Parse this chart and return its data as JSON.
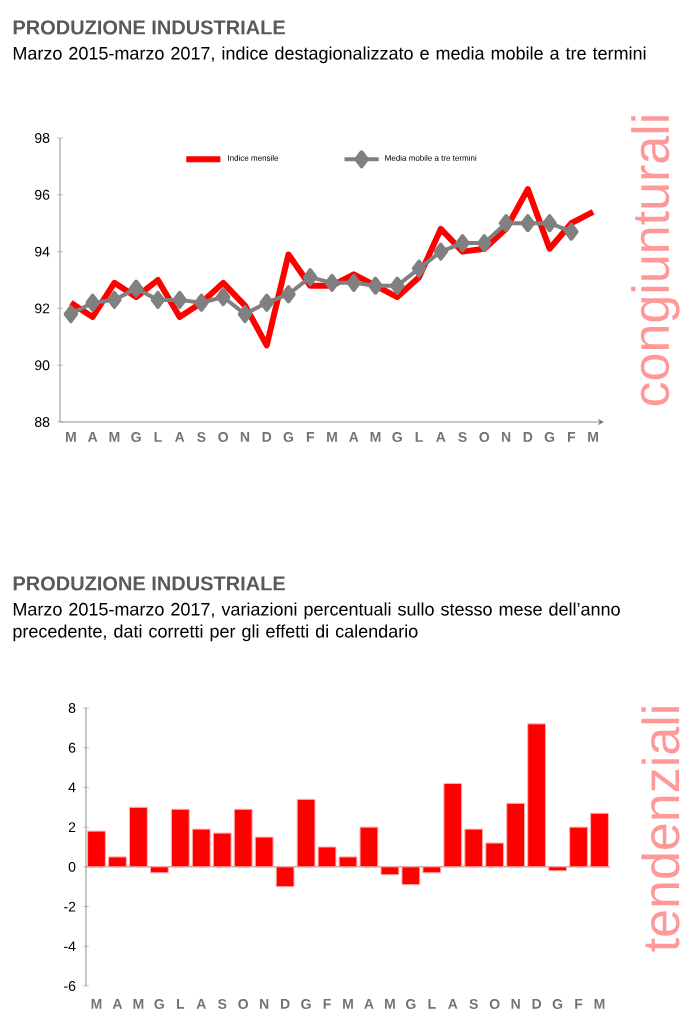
{
  "chart_data": [
    {
      "type": "line",
      "title": "PRODUZIONE INDUSTRIALE",
      "subtitle": "Marzo 2015-marzo 2017, indice destagionalizzato e media mobile a tre termini",
      "categories": [
        "M",
        "A",
        "M",
        "G",
        "L",
        "A",
        "S",
        "O",
        "N",
        "D",
        "G",
        "F",
        "M",
        "A",
        "M",
        "G",
        "L",
        "A",
        "S",
        "O",
        "N",
        "D",
        "G",
        "F",
        "M"
      ],
      "series": [
        {
          "name": "Indice mensile",
          "color": "#ff0000",
          "marker": "none",
          "values": [
            92.2,
            91.7,
            92.9,
            92.4,
            93.0,
            91.7,
            92.2,
            92.9,
            92.1,
            90.7,
            93.9,
            92.8,
            92.8,
            93.2,
            92.8,
            92.4,
            93.1,
            94.8,
            94.0,
            94.1,
            94.8,
            96.2,
            94.1,
            95.0,
            95.4
          ]
        },
        {
          "name": "Media mobile a tre termini",
          "color": "#808080",
          "marker": "diamond",
          "values": [
            91.8,
            92.2,
            92.3,
            92.7,
            92.3,
            92.3,
            92.2,
            92.4,
            91.8,
            92.2,
            92.5,
            93.1,
            92.9,
            92.9,
            92.8,
            92.8,
            93.4,
            94.0,
            94.3,
            94.3,
            95.0,
            95.0,
            95.0,
            94.7,
            null
          ]
        }
      ],
      "ylim": [
        88,
        98
      ],
      "yticks": [
        88,
        90,
        92,
        94,
        96,
        98
      ],
      "legend": "top",
      "annotations": [
        "congiunturali"
      ]
    },
    {
      "type": "bar",
      "title": "PRODUZIONE INDUSTRIALE",
      "subtitle": "Marzo 2015-marzo 2017, variazioni percentuali sullo stesso mese dell’anno precedente, dati corretti per gli effetti di calendario",
      "categories": [
        "M",
        "A",
        "M",
        "G",
        "L",
        "A",
        "S",
        "O",
        "N",
        "D",
        "G",
        "F",
        "M",
        "A",
        "M",
        "G",
        "L",
        "A",
        "S",
        "O",
        "N",
        "D",
        "G",
        "F",
        "M"
      ],
      "color": "#ff0000",
      "values": [
        1.8,
        0.5,
        3.0,
        -0.3,
        2.9,
        1.9,
        1.7,
        2.9,
        1.5,
        -1.0,
        3.4,
        1.0,
        0.5,
        2.0,
        -0.4,
        -0.9,
        -0.3,
        4.2,
        1.9,
        1.2,
        3.2,
        7.2,
        -0.2,
        2.0,
        2.7
      ],
      "ylim": [
        -6,
        8
      ],
      "yticks": [
        -6,
        -4,
        -2,
        0,
        2,
        4,
        6,
        8
      ],
      "annotations": [
        "tendenziali"
      ]
    }
  ]
}
